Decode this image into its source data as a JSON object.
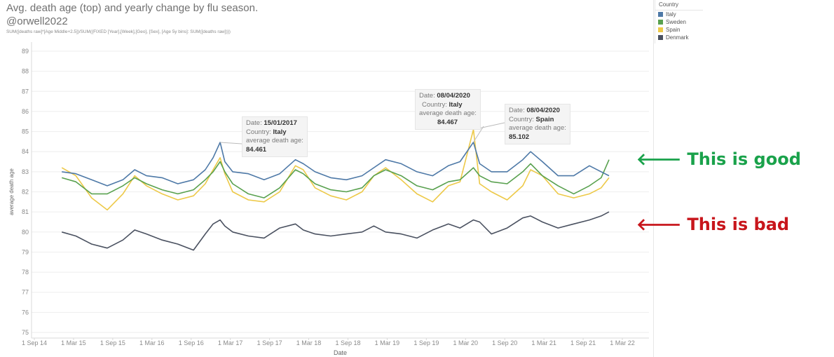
{
  "header": {
    "title": "Avg. death age (top) and yearly change by flu season.",
    "author": "@orwell2022",
    "formula": "SUM([deaths raw]*[Age Middle+2.5])/SUM({FIXED [Year],[Week],[Geo], [Sex], [Age 5y bins]: SUM([deaths raw])})"
  },
  "legend": {
    "title": "Country",
    "items": [
      {
        "label": "Italy",
        "color": "#4e79a7"
      },
      {
        "label": "Sweden",
        "color": "#59a14f"
      },
      {
        "label": "Spain",
        "color": "#edc948"
      },
      {
        "label": "Denmark",
        "color": "#4a5160"
      }
    ]
  },
  "annotations": {
    "good": {
      "arrow": "🡐",
      "text": "This is good",
      "color": "#1aa24b"
    },
    "bad": {
      "arrow": "🡐",
      "text": "This is bad",
      "color": "#c8161c"
    }
  },
  "tooltips": [
    {
      "date_label": "Date:",
      "date": "15/01/2017",
      "country_label": "Country:",
      "country": "Italy",
      "metric_label": "average death age:",
      "value": "84.461"
    },
    {
      "date_label": "Date:",
      "date": "08/04/2020",
      "country_label": "Country:",
      "country": "Italy",
      "metric_label": "average death age:",
      "value": "84.467"
    },
    {
      "date_label": "Date:",
      "date": "08/04/2020",
      "country_label": "Country:",
      "country": "Spain",
      "metric_label": "average death age:",
      "value": "85.102"
    }
  ],
  "chart_data": {
    "type": "line",
    "title": "Avg. death age (top) and yearly change by flu season.",
    "xlabel": "Date",
    "ylabel": "average death age",
    "ylim": [
      75,
      89
    ],
    "yticks": [
      75,
      76,
      77,
      78,
      79,
      80,
      81,
      82,
      83,
      84,
      85,
      86,
      87,
      88,
      89
    ],
    "xlim": [
      2014.67,
      2022.17
    ],
    "xticks": [
      {
        "label": "1 Sep 14",
        "x": 2014.67
      },
      {
        "label": "1 Mar 15",
        "x": 2015.17
      },
      {
        "label": "1 Sep 15",
        "x": 2015.67
      },
      {
        "label": "1 Mar 16",
        "x": 2016.17
      },
      {
        "label": "1 Sep 16",
        "x": 2016.67
      },
      {
        "label": "1 Mar 17",
        "x": 2017.17
      },
      {
        "label": "1 Sep 17",
        "x": 2017.67
      },
      {
        "label": "1 Mar 18",
        "x": 2018.17
      },
      {
        "label": "1 Sep 18",
        "x": 2018.67
      },
      {
        "label": "1 Mar 19",
        "x": 2019.17
      },
      {
        "label": "1 Sep 19",
        "x": 2019.67
      },
      {
        "label": "1 Mar 20",
        "x": 2020.17
      },
      {
        "label": "1 Sep 20",
        "x": 2020.67
      },
      {
        "label": "1 Mar 21",
        "x": 2021.17
      },
      {
        "label": "1 Sep 21",
        "x": 2021.67
      },
      {
        "label": "1 Mar 22",
        "x": 2022.17
      }
    ],
    "grid": "horizontal",
    "series": [
      {
        "name": "Italy",
        "color": "#4e79a7",
        "x": [
          2015.02,
          2015.2,
          2015.4,
          2015.6,
          2015.8,
          2015.95,
          2016.1,
          2016.3,
          2016.5,
          2016.7,
          2016.85,
          2016.95,
          2017.04,
          2017.1,
          2017.2,
          2017.4,
          2017.6,
          2017.8,
          2018.0,
          2018.1,
          2018.25,
          2018.45,
          2018.65,
          2018.85,
          2019.0,
          2019.15,
          2019.35,
          2019.55,
          2019.75,
          2019.95,
          2020.1,
          2020.27,
          2020.35,
          2020.5,
          2020.7,
          2020.9,
          2021.0,
          2021.15,
          2021.35,
          2021.55,
          2021.75,
          2021.9,
          2022.0
        ],
        "y": [
          83.0,
          82.9,
          82.6,
          82.3,
          82.6,
          83.1,
          82.8,
          82.7,
          82.4,
          82.6,
          83.1,
          83.7,
          84.46,
          83.5,
          83.0,
          82.9,
          82.6,
          82.9,
          83.6,
          83.4,
          83.0,
          82.7,
          82.6,
          82.8,
          83.2,
          83.6,
          83.4,
          83.0,
          82.8,
          83.3,
          83.5,
          84.47,
          83.4,
          83.0,
          83.0,
          83.6,
          84.0,
          83.5,
          82.8,
          82.8,
          83.3,
          83.0,
          82.8
        ]
      },
      {
        "name": "Sweden",
        "color": "#59a14f",
        "x": [
          2015.02,
          2015.2,
          2015.4,
          2015.6,
          2015.8,
          2015.95,
          2016.1,
          2016.3,
          2016.5,
          2016.7,
          2016.85,
          2016.95,
          2017.04,
          2017.1,
          2017.2,
          2017.4,
          2017.6,
          2017.8,
          2018.0,
          2018.1,
          2018.25,
          2018.45,
          2018.65,
          2018.85,
          2019.0,
          2019.15,
          2019.35,
          2019.55,
          2019.75,
          2019.95,
          2020.1,
          2020.27,
          2020.35,
          2020.5,
          2020.7,
          2020.9,
          2021.0,
          2021.15,
          2021.35,
          2021.55,
          2021.75,
          2021.9,
          2022.0
        ],
        "y": [
          82.7,
          82.5,
          81.9,
          81.9,
          82.3,
          82.7,
          82.4,
          82.1,
          81.9,
          82.1,
          82.6,
          83.0,
          83.5,
          83.0,
          82.4,
          81.9,
          81.7,
          82.2,
          83.1,
          82.9,
          82.4,
          82.1,
          82.0,
          82.2,
          82.8,
          83.1,
          82.8,
          82.3,
          82.1,
          82.5,
          82.6,
          83.2,
          82.8,
          82.5,
          82.4,
          83.0,
          83.4,
          82.8,
          82.3,
          81.9,
          82.3,
          82.7,
          83.6
        ]
      },
      {
        "name": "Spain",
        "color": "#edc948",
        "x": [
          2015.02,
          2015.2,
          2015.4,
          2015.6,
          2015.8,
          2015.95,
          2016.1,
          2016.3,
          2016.5,
          2016.7,
          2016.85,
          2016.95,
          2017.04,
          2017.1,
          2017.2,
          2017.4,
          2017.6,
          2017.8,
          2018.0,
          2018.1,
          2018.25,
          2018.45,
          2018.65,
          2018.85,
          2019.0,
          2019.15,
          2019.35,
          2019.55,
          2019.75,
          2019.95,
          2020.1,
          2020.27,
          2020.35,
          2020.5,
          2020.7,
          2020.9,
          2021.0,
          2021.15,
          2021.35,
          2021.55,
          2021.75,
          2021.9,
          2022.0
        ],
        "y": [
          83.2,
          82.8,
          81.7,
          81.1,
          81.9,
          82.8,
          82.3,
          81.9,
          81.6,
          81.8,
          82.4,
          83.1,
          83.7,
          82.9,
          82.0,
          81.6,
          81.5,
          82.0,
          83.3,
          83.1,
          82.2,
          81.8,
          81.6,
          82.0,
          82.8,
          83.2,
          82.6,
          81.9,
          81.5,
          82.3,
          82.5,
          85.1,
          82.4,
          82.0,
          81.6,
          82.3,
          83.1,
          82.8,
          81.9,
          81.7,
          81.9,
          82.2,
          82.7
        ]
      },
      {
        "name": "Denmark",
        "color": "#4a5160",
        "x": [
          2015.02,
          2015.2,
          2015.4,
          2015.6,
          2015.8,
          2015.95,
          2016.1,
          2016.3,
          2016.5,
          2016.7,
          2016.85,
          2016.95,
          2017.04,
          2017.1,
          2017.2,
          2017.4,
          2017.6,
          2017.8,
          2018.0,
          2018.1,
          2018.25,
          2018.45,
          2018.65,
          2018.85,
          2019.0,
          2019.15,
          2019.35,
          2019.55,
          2019.75,
          2019.95,
          2020.1,
          2020.27,
          2020.35,
          2020.5,
          2020.7,
          2020.9,
          2021.0,
          2021.15,
          2021.35,
          2021.55,
          2021.75,
          2021.9,
          2022.0
        ],
        "y": [
          80.0,
          79.8,
          79.4,
          79.2,
          79.6,
          80.1,
          79.9,
          79.6,
          79.4,
          79.1,
          79.9,
          80.4,
          80.6,
          80.3,
          80.0,
          79.8,
          79.7,
          80.2,
          80.4,
          80.1,
          79.9,
          79.8,
          79.9,
          80.0,
          80.3,
          80.0,
          79.9,
          79.7,
          80.1,
          80.4,
          80.2,
          80.6,
          80.5,
          79.9,
          80.2,
          80.7,
          80.8,
          80.5,
          80.2,
          80.4,
          80.6,
          80.8,
          81.0
        ]
      }
    ]
  }
}
